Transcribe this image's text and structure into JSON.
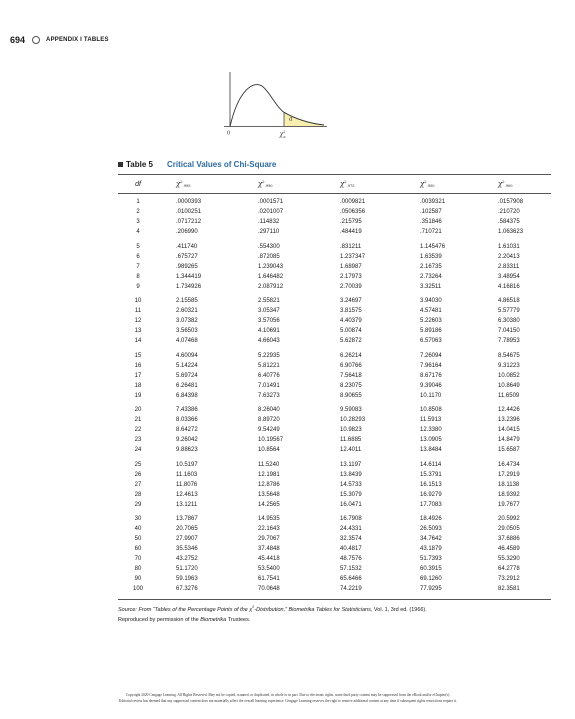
{
  "header": {
    "page_number": "694",
    "section": "APPENDIX I TABLES"
  },
  "figure": {
    "zero_label": "0",
    "alpha_label": "a",
    "chi_label": "χ",
    "chi_sub": "a",
    "chi_sup": "2"
  },
  "table": {
    "label": "Table 5",
    "title": "Critical Values of Chi-Square",
    "columns": [
      {
        "head": "df"
      },
      {
        "chi": "χ",
        "sup": "2",
        "sub": ".995"
      },
      {
        "chi": "χ",
        "sup": "2",
        "sub": ".990"
      },
      {
        "chi": "χ",
        "sup": "2",
        "sub": ".975"
      },
      {
        "chi": "χ",
        "sup": "2",
        "sub": ".950"
      },
      {
        "chi": "χ",
        "sup": "2",
        "sub": ".900"
      }
    ],
    "groups": [
      [
        [
          "1",
          ".0000393",
          ".0001571",
          ".0009821",
          ".0039321",
          ".0157908"
        ],
        [
          "2",
          ".0100251",
          ".0201007",
          ".0506356",
          ".102587",
          ".210720"
        ],
        [
          "3",
          ".0717212",
          ".114832",
          ".215795",
          ".351846",
          ".584375"
        ],
        [
          "4",
          ".206990",
          ".297110",
          ".484419",
          ".710721",
          "1.063623"
        ]
      ],
      [
        [
          "5",
          ".411740",
          ".554300",
          ".831211",
          "1.145476",
          "1.61031"
        ],
        [
          "6",
          ".675727",
          ".872085",
          "1.237347",
          "1.63539",
          "2.20413"
        ],
        [
          "7",
          ".989265",
          "1.239043",
          "1.68987",
          "2.16735",
          "2.83311"
        ],
        [
          "8",
          "1.344419",
          "1.646482",
          "2.17973",
          "2.73264",
          "3.48954"
        ],
        [
          "9",
          "1.734926",
          "2.087912",
          "2.70039",
          "3.32511",
          "4.16816"
        ]
      ],
      [
        [
          "10",
          "2.15585",
          "2.55821",
          "3.24697",
          "3.94030",
          "4.86518"
        ],
        [
          "11",
          "2.60321",
          "3.05347",
          "3.81575",
          "4.57481",
          "5.57779"
        ],
        [
          "12",
          "3.07382",
          "3.57056",
          "4.40379",
          "5.22603",
          "6.30380"
        ],
        [
          "13",
          "3.56503",
          "4.10691",
          "5.00874",
          "5.89186",
          "7.04150"
        ],
        [
          "14",
          "4.07468",
          "4.66043",
          "5.62872",
          "6.57063",
          "7.78953"
        ]
      ],
      [
        [
          "15",
          "4.60094",
          "5.22935",
          "6.26214",
          "7.26094",
          "8.54675"
        ],
        [
          "16",
          "5.14224",
          "5.81221",
          "6.90766",
          "7.96164",
          "9.31223"
        ],
        [
          "17",
          "5.69724",
          "6.40776",
          "7.56418",
          "8.67176",
          "10.0852"
        ],
        [
          "18",
          "6.26481",
          "7.01491",
          "8.23075",
          "9.39046",
          "10.8649"
        ],
        [
          "19",
          "6.84398",
          "7.63273",
          "8.90655",
          "10.1170",
          "11.6509"
        ]
      ],
      [
        [
          "20",
          "7.43386",
          "8.26040",
          "9.59083",
          "10.8508",
          "12.4426"
        ],
        [
          "21",
          "8.03366",
          "8.89720",
          "10.28293",
          "11.5913",
          "13.2396"
        ],
        [
          "22",
          "8.64272",
          "9.54249",
          "10.9823",
          "12.3380",
          "14.0415"
        ],
        [
          "23",
          "9.26042",
          "10.19567",
          "11.6885",
          "13.0905",
          "14.8479"
        ],
        [
          "24",
          "9.88623",
          "10.8564",
          "12.4011",
          "13.8484",
          "15.6587"
        ]
      ],
      [
        [
          "25",
          "10.5197",
          "11.5240",
          "13.1197",
          "14.6114",
          "16.4734"
        ],
        [
          "26",
          "11.1603",
          "12.1981",
          "13.8439",
          "15.3791",
          "17.2919"
        ],
        [
          "27",
          "11.8076",
          "12.8786",
          "14.5733",
          "16.1513",
          "18.1138"
        ],
        [
          "28",
          "12.4613",
          "13.5648",
          "15.3079",
          "16.9279",
          "18.9392"
        ],
        [
          "29",
          "13.1211",
          "14.2565",
          "16.0471",
          "17.7083",
          "19.7677"
        ]
      ],
      [
        [
          "30",
          "13.7867",
          "14.9535",
          "16.7908",
          "18.4926",
          "20.5992"
        ],
        [
          "40",
          "20.7065",
          "22.1643",
          "24.4331",
          "26.5093",
          "29.0505"
        ],
        [
          "50",
          "27.9907",
          "29.7067",
          "32.3574",
          "34.7642",
          "37.6886"
        ],
        [
          "60",
          "35.5346",
          "37.4848",
          "40.4817",
          "43.1879",
          "46.4589"
        ],
        [
          "70",
          "43.2752",
          "45.4418",
          "48.7576",
          "51.7393",
          "55.3290"
        ],
        [
          "80",
          "51.1720",
          "53.5400",
          "57.1532",
          "60.3915",
          "64.2778"
        ],
        [
          "90",
          "59.1963",
          "61.7541",
          "65.6466",
          "69.1260",
          "73.2912"
        ],
        [
          "100",
          "67.3276",
          "70.0648",
          "74.2219",
          "77.9295",
          "82.3581"
        ]
      ]
    ]
  },
  "source": {
    "prefix": "Source:  From “Tables of the Percentage Points of the χ",
    "sup": "2",
    "mid": "-Distribution,” ",
    "journal": "Biometrika Tables for Statisticians",
    "suffix": ", Vol. 1, 3rd ed. (1966).",
    "line2a": "Reproduced by permission of the ",
    "line2b": "Biometrika",
    "line2c": " Trustees."
  },
  "footer": {
    "line1": "Copyright 2020 Cengage Learning. All Rights Reserved. May not be copied, scanned, or duplicated, in whole or in part. Due to electronic rights, some third party content may be suppressed from the eBook and/or eChapter(s).",
    "line2": "Editorial review has deemed that any suppressed content does not materially affect the overall learning experience. Cengage Learning reserves the right to remove additional content at any time if subsequent rights restrictions require it."
  }
}
